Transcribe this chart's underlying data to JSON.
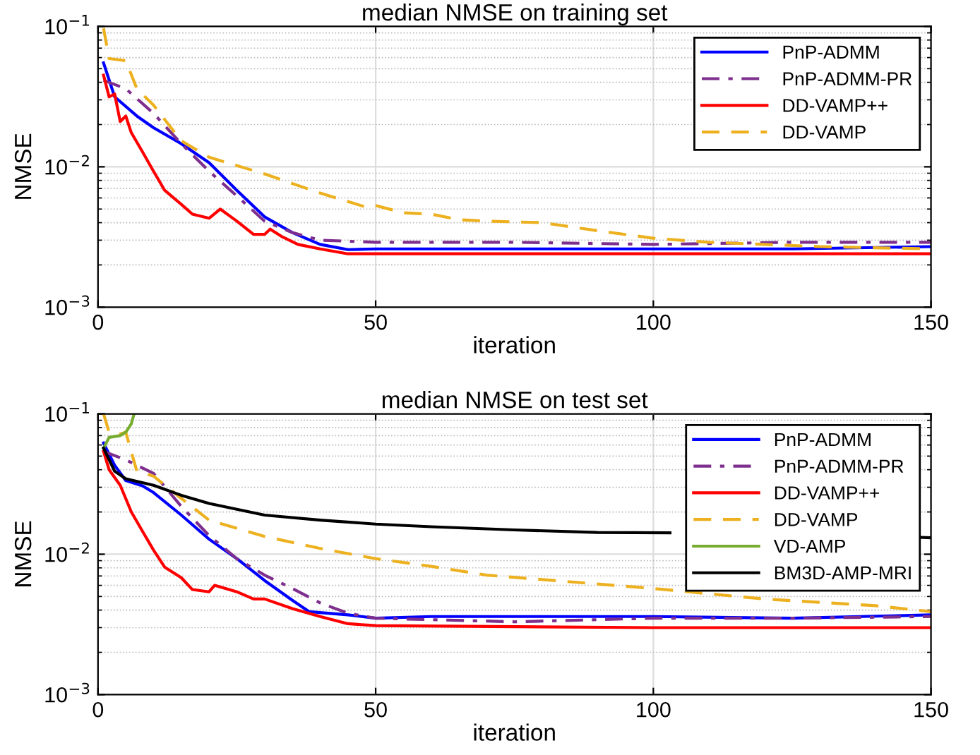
{
  "chart_data": [
    {
      "type": "line",
      "title": "median NMSE on training set",
      "xlabel": "iteration",
      "ylabel": "NMSE",
      "log": "y",
      "grid": true,
      "legend": "top right",
      "xlim": [
        0,
        150
      ],
      "xticks": [
        0,
        50,
        100,
        150
      ],
      "ylim": [
        0.001,
        0.1
      ],
      "yticks": [
        {
          "value": 0.001,
          "label": "10$^{−3}$"
        },
        {
          "value": 0.01,
          "label": "10$^{−2}$"
        },
        {
          "value": 0.1,
          "label": "10$^{−1}$"
        }
      ],
      "series": [
        {
          "name": "PnP-ADMM",
          "color": "#0000ff",
          "line_style": "solid",
          "x": [
            1,
            3,
            7,
            10,
            15,
            20,
            25,
            30,
            35,
            40,
            45,
            50,
            75,
            100,
            125,
            150
          ],
          "values": [
            0.055,
            0.0315,
            0.023,
            0.019,
            0.0146,
            0.0107,
            0.0068,
            0.0044,
            0.0034,
            0.0028,
            0.00257,
            0.0026,
            0.0026,
            0.0026,
            0.0026,
            0.0027
          ]
        },
        {
          "name": "PnP-ADMM-PR",
          "color": "#7e2f8e",
          "line_style": "dashdot",
          "x": [
            1,
            5,
            10,
            15,
            20,
            25,
            30,
            35,
            40,
            50,
            75,
            100,
            125,
            150
          ],
          "values": [
            0.0413,
            0.036,
            0.024,
            0.0146,
            0.0093,
            0.0062,
            0.0041,
            0.0034,
            0.003,
            0.0029,
            0.0029,
            0.0028,
            0.0029,
            0.0029
          ]
        },
        {
          "name": "DD-VAMP++",
          "color": "#ff0000",
          "line_style": "solid",
          "x": [
            1,
            2,
            3,
            4,
            5,
            6,
            8,
            10,
            12,
            15,
            17,
            20,
            22,
            25,
            28,
            30,
            31,
            33,
            36,
            40,
            45,
            100,
            150
          ],
          "values": [
            0.045,
            0.0315,
            0.033,
            0.021,
            0.023,
            0.0175,
            0.0128,
            0.0093,
            0.0068,
            0.0054,
            0.0046,
            0.0043,
            0.005,
            0.0041,
            0.0033,
            0.0033,
            0.0036,
            0.0032,
            0.0028,
            0.0026,
            0.0024,
            0.0024,
            0.0024
          ]
        },
        {
          "name": "DD-VAMP",
          "color": "#edb120",
          "line_style": "dashed",
          "x": [
            1,
            2,
            5,
            7,
            10,
            15,
            20,
            30,
            40,
            48,
            50,
            55,
            60,
            65,
            70,
            80,
            90,
            100,
            110,
            120,
            130,
            150
          ],
          "values": [
            0.097,
            0.059,
            0.057,
            0.036,
            0.0275,
            0.0153,
            0.0117,
            0.0089,
            0.0065,
            0.0052,
            0.0053,
            0.0047,
            0.0046,
            0.0042,
            0.0041,
            0.004,
            0.0035,
            0.0031,
            0.0029,
            0.0028,
            0.0027,
            0.0026
          ]
        }
      ]
    },
    {
      "type": "line",
      "title": "median NMSE on test set",
      "xlabel": "iteration",
      "ylabel": "NMSE",
      "log": "y",
      "grid": true,
      "legend": "top right",
      "xlim": [
        0,
        150
      ],
      "xticks": [
        0,
        50,
        100,
        150
      ],
      "ylim": [
        0.001,
        0.1
      ],
      "yticks": [
        {
          "value": 0.001,
          "label": "10$^{−3}$"
        },
        {
          "value": 0.01,
          "label": "10$^{−2}$"
        },
        {
          "value": 0.1,
          "label": "10$^{−1}$"
        }
      ],
      "series": [
        {
          "name": "PnP-ADMM",
          "color": "#0000ff",
          "line_style": "solid",
          "x": [
            1,
            3,
            5,
            8,
            10,
            15,
            20,
            25,
            30,
            35,
            38,
            45,
            50,
            60,
            75,
            100,
            125,
            150
          ],
          "values": [
            0.062,
            0.043,
            0.0335,
            0.0307,
            0.0275,
            0.019,
            0.0128,
            0.0093,
            0.0065,
            0.0047,
            0.0039,
            0.0037,
            0.0035,
            0.0036,
            0.0036,
            0.0036,
            0.0035,
            0.0037
          ]
        },
        {
          "name": "PnP-ADMM-PR",
          "color": "#7e2f8e",
          "line_style": "dashdot",
          "x": [
            1,
            5,
            10,
            15,
            20,
            25,
            30,
            35,
            40,
            45,
            50,
            75,
            100,
            125,
            150
          ],
          "values": [
            0.054,
            0.047,
            0.0377,
            0.0219,
            0.0136,
            0.0093,
            0.0071,
            0.0057,
            0.0045,
            0.0038,
            0.0035,
            0.0033,
            0.0035,
            0.0035,
            0.0036
          ]
        },
        {
          "name": "DD-VAMP++",
          "color": "#ff0000",
          "line_style": "solid",
          "x": [
            1,
            2,
            4,
            6,
            8,
            10,
            12,
            15,
            17,
            20,
            21,
            25,
            28,
            30,
            35,
            40,
            45,
            50,
            100,
            150
          ],
          "values": [
            0.054,
            0.04,
            0.031,
            0.02,
            0.0146,
            0.0107,
            0.0081,
            0.0068,
            0.0056,
            0.0054,
            0.006,
            0.0054,
            0.0048,
            0.0048,
            0.0041,
            0.0036,
            0.0032,
            0.0031,
            0.003,
            0.003
          ]
        },
        {
          "name": "DD-VAMP",
          "color": "#edb120",
          "line_style": "dashed",
          "x": [
            1,
            2,
            4,
            5,
            7,
            10,
            15,
            20,
            30,
            40,
            50,
            60,
            70,
            80,
            100,
            120,
            140,
            150
          ],
          "values": [
            0.1,
            0.074,
            0.072,
            0.074,
            0.039,
            0.036,
            0.025,
            0.0175,
            0.0134,
            0.011,
            0.0093,
            0.0082,
            0.0071,
            0.0066,
            0.0057,
            0.0048,
            0.0043,
            0.0039
          ]
        },
        {
          "name": "VD-AMP",
          "color": "#77ac30",
          "line_style": "solid",
          "x": [
            1,
            2,
            4,
            5,
            6,
            6.5
          ],
          "values": [
            0.057,
            0.068,
            0.07,
            0.074,
            0.085,
            0.1
          ]
        },
        {
          "name": "BM3D-AMP-MRI",
          "color": "#000000",
          "line_style": "solid",
          "x": [
            1,
            3,
            5,
            10,
            15,
            20,
            30,
            40,
            50,
            60,
            75,
            90,
            103,
            110,
            130,
            148,
            150
          ],
          "values": [
            0.057,
            0.039,
            0.0345,
            0.031,
            0.0263,
            0.023,
            0.019,
            0.0175,
            0.0164,
            0.0157,
            0.0149,
            0.0143,
            0.0142,
            null,
            null,
            0.0132,
            0.0131
          ]
        }
      ]
    }
  ]
}
